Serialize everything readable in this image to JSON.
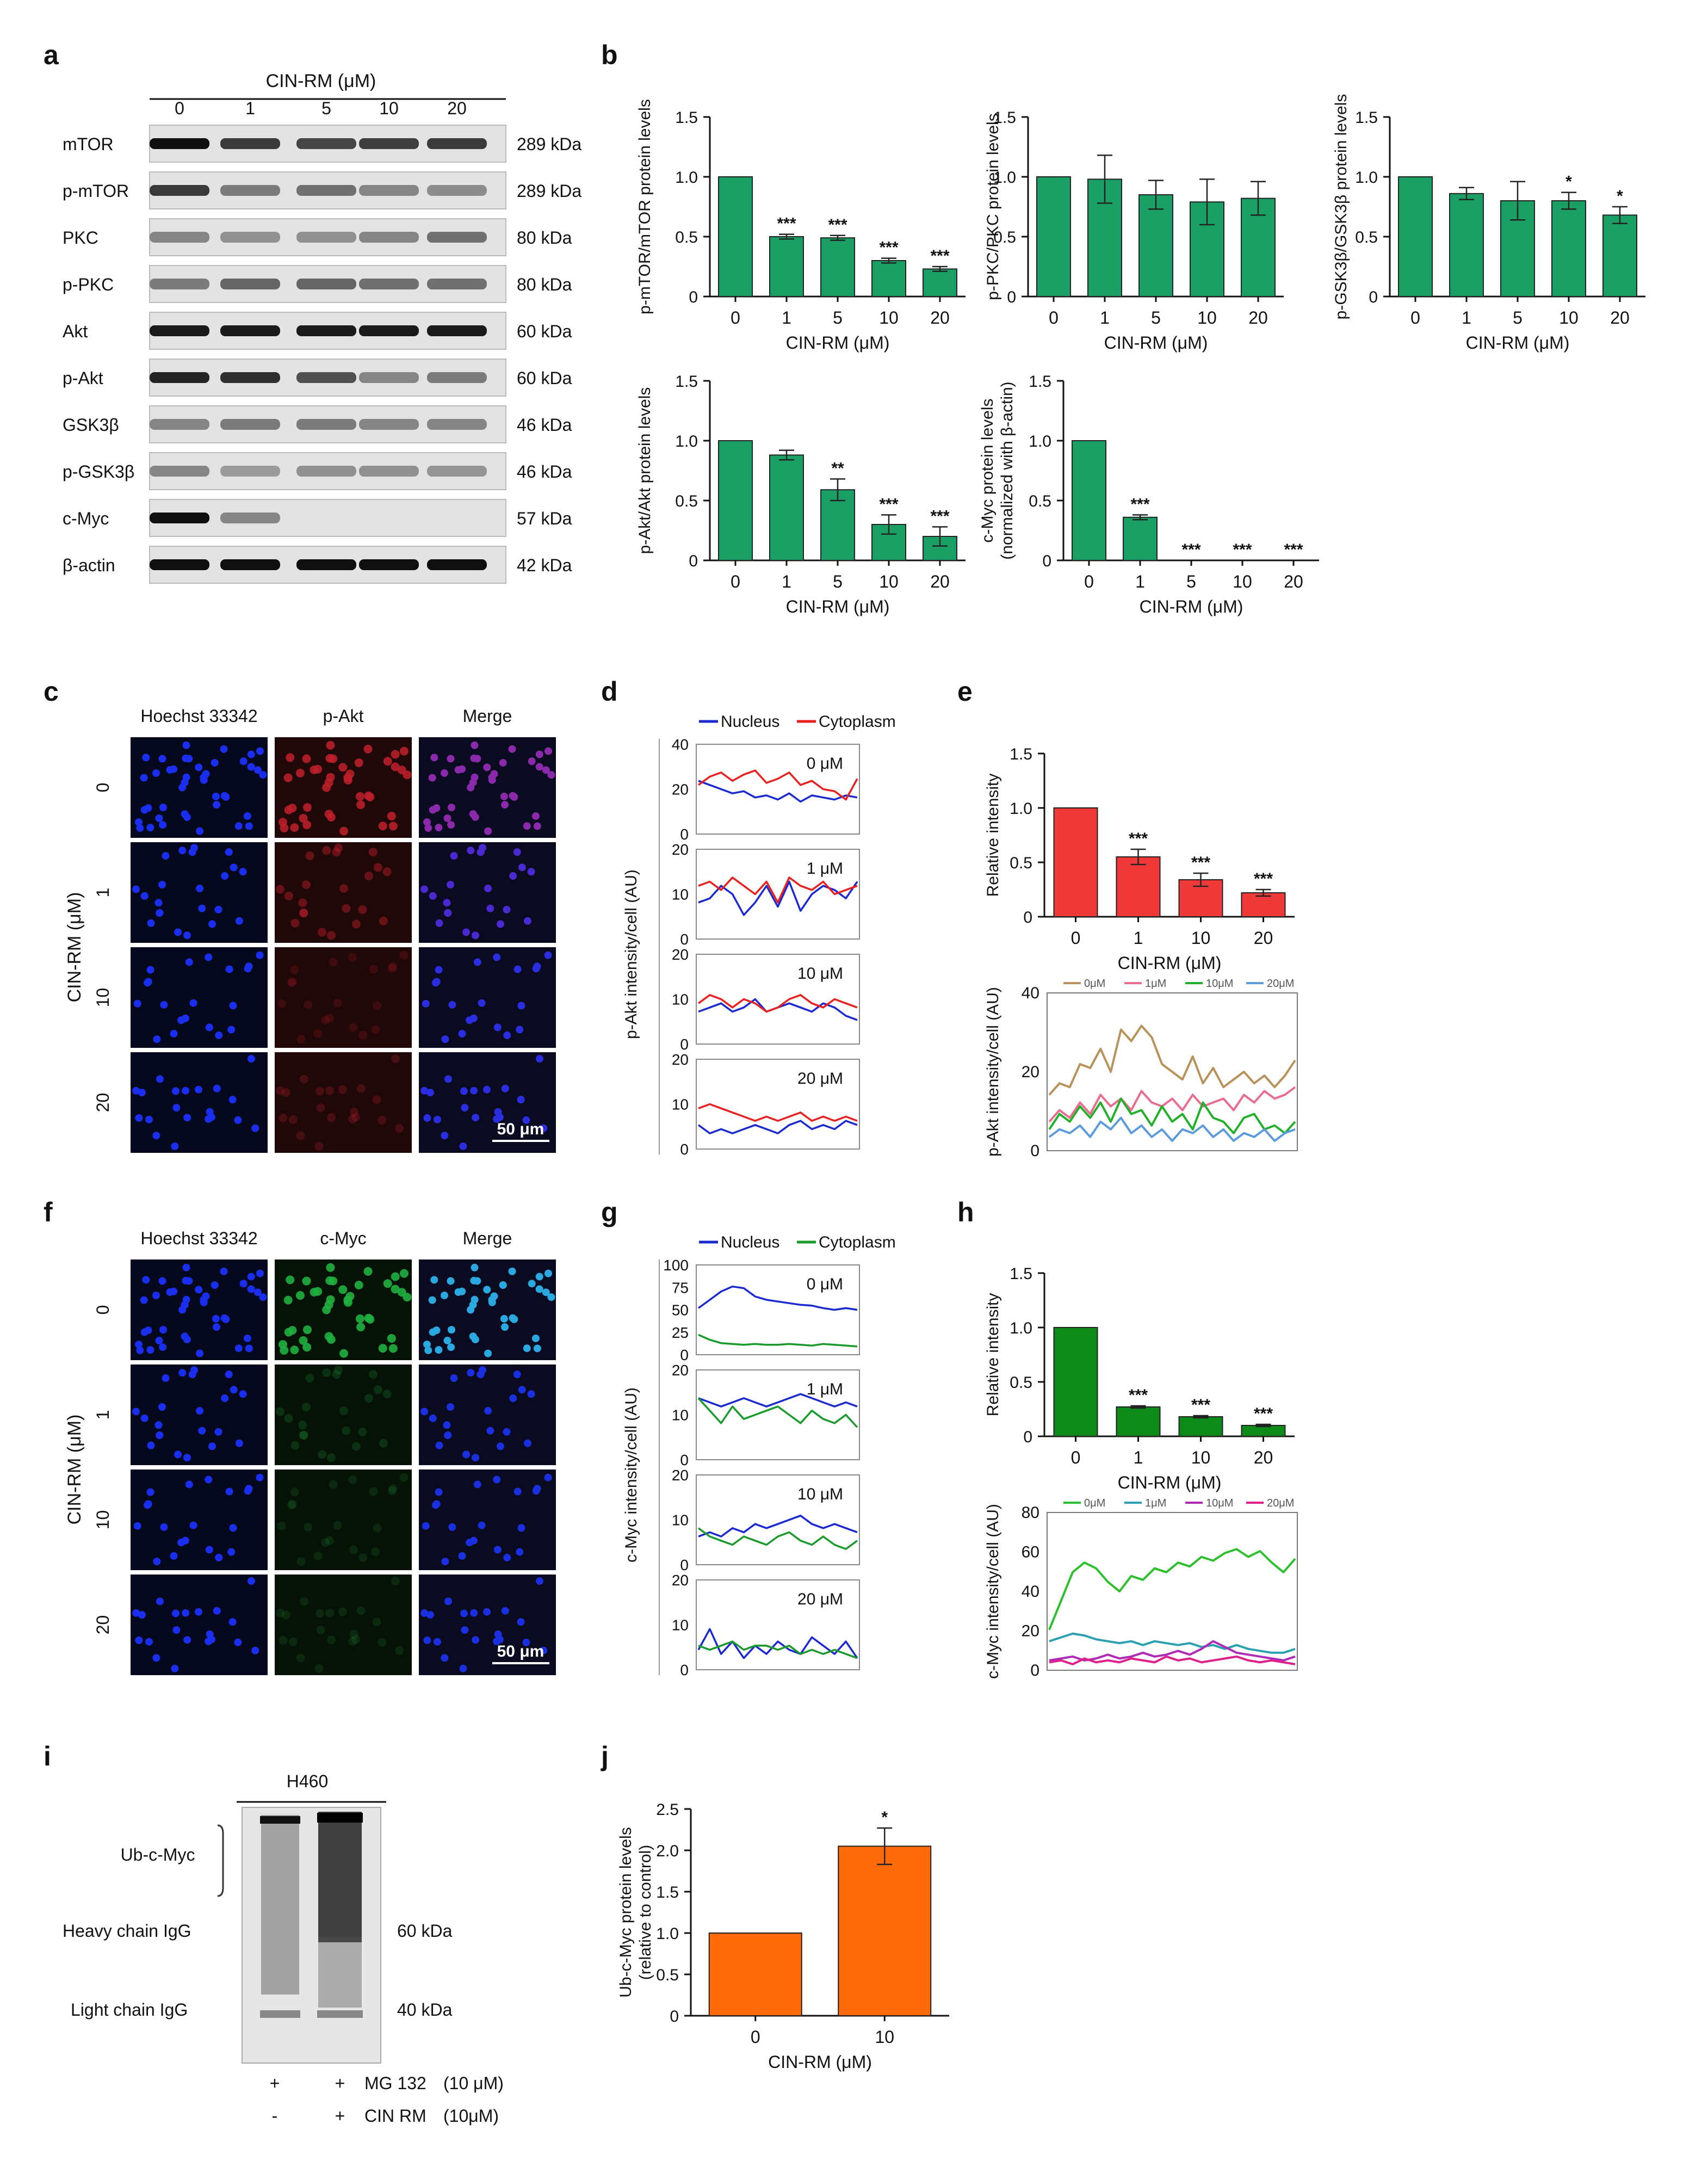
{
  "conc": [
    "0",
    "1",
    "5",
    "10",
    "20"
  ],
  "conc4": [
    "0",
    "1",
    "10",
    "20"
  ],
  "panelA": {
    "letter": "a",
    "header": "CIN-RM (μM)",
    "rows": [
      {
        "label": "mTOR",
        "kda": "289 kDa",
        "band": [
          1.0,
          0.8,
          0.75,
          0.78,
          0.8
        ]
      },
      {
        "label": "p-mTOR",
        "kda": "289 kDa",
        "band": [
          0.8,
          0.5,
          0.55,
          0.45,
          0.42
        ]
      },
      {
        "label": "PKC",
        "kda": "80 kDa",
        "band": [
          0.45,
          0.4,
          0.4,
          0.45,
          0.55
        ]
      },
      {
        "label": "p-PKC",
        "kda": "80 kDa",
        "band": [
          0.5,
          0.6,
          0.6,
          0.55,
          0.55
        ]
      },
      {
        "label": "Akt",
        "kda": "60 kDa",
        "band": [
          0.95,
          0.95,
          0.95,
          0.95,
          0.95
        ]
      },
      {
        "label": "p-Akt",
        "kda": "60 kDa",
        "band": [
          0.9,
          0.85,
          0.7,
          0.45,
          0.5
        ]
      },
      {
        "label": "GSK3β",
        "kda": "46 kDa",
        "band": [
          0.45,
          0.5,
          0.5,
          0.45,
          0.45
        ]
      },
      {
        "label": "p-GSK3β",
        "kda": "46 kDa",
        "band": [
          0.45,
          0.35,
          0.4,
          0.4,
          0.38
        ]
      },
      {
        "label": "c-Myc",
        "kda": "57 kDa",
        "band": [
          1.0,
          0.45,
          0.0,
          0.0,
          0.0
        ]
      },
      {
        "label": "β-actin",
        "kda": "42 kDa",
        "band": [
          1.0,
          1.0,
          1.0,
          1.0,
          1.0
        ]
      }
    ]
  },
  "panelB": {
    "letter": "b",
    "xlabel": "CIN-RM (μM)",
    "charts": [
      {
        "ylabel": "p-mTOR/mTOR protein levels",
        "yticks": [
          "0",
          "0.5",
          "1.0",
          "1.5"
        ],
        "values": [
          1.0,
          0.5,
          0.49,
          0.3,
          0.23
        ],
        "errors": [
          0,
          0.02,
          0.02,
          0.02,
          0.02
        ],
        "stars": [
          "",
          "***",
          "***",
          "***",
          "***"
        ]
      },
      {
        "ylabel": "p-PKC/PKC protein levels",
        "yticks": [
          "0",
          "0.5",
          "1.0",
          "1.5"
        ],
        "values": [
          1.0,
          0.98,
          0.85,
          0.79,
          0.82
        ],
        "errors": [
          0,
          0.2,
          0.12,
          0.19,
          0.14
        ],
        "stars": [
          "",
          "",
          "",
          "",
          ""
        ]
      },
      {
        "ylabel": "p-GSK3β/GSK3β protein levels",
        "yticks": [
          "0",
          "0.5",
          "1.0",
          "1.5"
        ],
        "values": [
          1.0,
          0.86,
          0.8,
          0.8,
          0.68
        ],
        "errors": [
          0,
          0.05,
          0.16,
          0.07,
          0.07
        ],
        "stars": [
          "",
          "",
          "",
          "*",
          "*"
        ]
      },
      {
        "ylabel": "p-Akt/Akt protein levels",
        "yticks": [
          "0",
          "0.5",
          "1.0",
          "1.5"
        ],
        "values": [
          1.0,
          0.88,
          0.59,
          0.3,
          0.2
        ],
        "errors": [
          0,
          0.04,
          0.09,
          0.08,
          0.08
        ],
        "stars": [
          "",
          "",
          "**",
          "***",
          "***"
        ]
      },
      {
        "ylabel": "c-Myc protein levels",
        "ylabel2": "(normalized with β-actin)",
        "yticks": [
          "0",
          "0.5",
          "1.0",
          "1.5"
        ],
        "values": [
          1.0,
          0.36,
          0.0,
          0.0,
          0.0
        ],
        "errors": [
          0,
          0.02,
          0,
          0,
          0
        ],
        "stars": [
          "",
          "***",
          "***",
          "***",
          "***"
        ]
      }
    ]
  },
  "panelC": {
    "letter": "c",
    "cols": [
      "Hoechst 33342",
      "p-Akt",
      "Merge"
    ],
    "ylabel": "CIN-RM (μM)",
    "rows": [
      "0",
      "1",
      "10",
      "20"
    ],
    "scalebar": "50 μm"
  },
  "panelD": {
    "letter": "d",
    "legend": [
      "Nucleus",
      "Cytoplasm"
    ],
    "ylabel": "p-Akt intensity/cell (AU)",
    "subs": [
      {
        "label": "0 μM",
        "yticks": [
          "0",
          "20",
          "40"
        ],
        "ymax": 40,
        "nucleus": [
          24,
          22,
          20,
          18,
          19,
          16,
          17,
          15,
          18,
          14,
          17,
          16,
          15,
          17,
          16
        ],
        "cytoplasm": [
          22,
          26,
          28,
          24,
          27,
          29,
          23,
          25,
          28,
          22,
          24,
          20,
          19,
          15,
          25
        ]
      },
      {
        "label": "1 μM",
        "yticks": [
          "0",
          "10",
          "20"
        ],
        "ymax": 20,
        "nucleus": [
          8,
          9,
          12,
          10,
          5,
          8,
          12,
          7,
          13,
          6,
          10,
          12,
          11,
          9,
          13
        ],
        "cytoplasm": [
          12,
          13,
          11,
          14,
          12,
          10,
          13,
          8,
          14,
          12,
          11,
          13,
          10,
          11,
          12
        ]
      },
      {
        "label": "10 μM",
        "yticks": [
          "0",
          "10",
          "20"
        ],
        "ymax": 20,
        "nucleus": [
          7,
          8,
          9,
          7,
          8,
          10,
          7,
          8,
          9,
          8,
          7,
          9,
          8,
          6,
          5
        ],
        "cytoplasm": [
          9,
          11,
          10,
          8,
          10,
          9,
          7,
          8,
          10,
          11,
          9,
          8,
          10,
          9,
          8
        ]
      },
      {
        "label": "20 μM",
        "yticks": [
          "0",
          "10",
          "20"
        ],
        "ymax": 20,
        "nucleus": [
          5,
          3,
          4,
          3,
          4,
          5,
          4,
          3,
          5,
          6,
          4,
          5,
          4,
          6,
          5
        ],
        "cytoplasm": [
          9,
          10,
          9,
          8,
          7,
          6,
          7,
          6,
          7,
          8,
          6,
          7,
          6,
          7,
          6
        ]
      }
    ]
  },
  "panelE": {
    "letter": "e",
    "bar": {
      "ylabel": "Relative intensity",
      "xlabel": "CIN-RM (μM)",
      "yticks": [
        "0",
        "0.5",
        "1.0",
        "1.5"
      ],
      "values": [
        1.0,
        0.55,
        0.34,
        0.22
      ],
      "errors": [
        0,
        0.07,
        0.06,
        0.03
      ],
      "stars": [
        "",
        "***",
        "***",
        "***"
      ],
      "color": "#f03a3a"
    },
    "line": {
      "ylabel": "p-Akt intensity/cell (AU)",
      "yticks": [
        "0",
        "20",
        "40"
      ],
      "ymax": 40,
      "legend": [
        "0μM",
        "1μM",
        "10μM",
        "20μM"
      ],
      "colors": [
        "#b8925a",
        "#e86d8f",
        "#22b02a",
        "#5b9bdc"
      ],
      "series": [
        [
          14,
          17,
          16,
          22,
          21,
          26,
          20,
          31,
          28,
          32,
          29,
          22,
          20,
          18,
          24,
          17,
          21,
          16,
          18,
          20,
          17,
          19,
          16,
          19,
          23
        ],
        [
          7,
          10,
          8,
          12,
          9,
          14,
          11,
          13,
          10,
          15,
          12,
          11,
          13,
          10,
          14,
          11,
          12,
          13,
          10,
          14,
          12,
          15,
          13,
          14,
          16
        ],
        [
          5,
          9,
          7,
          11,
          8,
          12,
          7,
          13,
          9,
          10,
          6,
          11,
          7,
          9,
          5,
          12,
          8,
          7,
          4,
          8,
          9,
          5,
          6,
          4,
          7
        ],
        [
          3,
          5,
          4,
          6,
          3,
          7,
          5,
          8,
          4,
          6,
          3,
          5,
          2,
          5,
          4,
          6,
          3,
          5,
          2,
          4,
          3,
          5,
          2,
          4,
          5
        ]
      ]
    }
  },
  "panelF": {
    "letter": "f",
    "cols": [
      "Hoechst 33342",
      "c-Myc",
      "Merge"
    ],
    "ylabel": "CIN-RM (μM)",
    "rows": [
      "0",
      "1",
      "10",
      "20"
    ],
    "scalebar": "50 μm"
  },
  "panelG": {
    "letter": "g",
    "legend": [
      "Nucleus",
      "Cytoplasm"
    ],
    "ylabel": "c-Myc intensity/cell (AU)",
    "subs": [
      {
        "label": "0 μM",
        "yticks": [
          "0",
          "25",
          "50",
          "75",
          "100"
        ],
        "ymax": 100,
        "nucleus": [
          52,
          62,
          72,
          78,
          76,
          66,
          62,
          60,
          58,
          56,
          55,
          52,
          50,
          52,
          50
        ],
        "cytoplasm": [
          20,
          14,
          10,
          9,
          8,
          9,
          8,
          8,
          9,
          8,
          7,
          9,
          8,
          7,
          6
        ]
      },
      {
        "label": "1 μM",
        "yticks": [
          "0",
          "10",
          "20"
        ],
        "ymax": 20,
        "nucleus": [
          14,
          13,
          12,
          13,
          14,
          13,
          12,
          13,
          14,
          15,
          14,
          13,
          12,
          13,
          12
        ],
        "cytoplasm": [
          14,
          11,
          8,
          12,
          9,
          10,
          11,
          12,
          10,
          8,
          11,
          9,
          8,
          10,
          7
        ]
      },
      {
        "label": "10 μM",
        "yticks": [
          "0",
          "10",
          "20"
        ],
        "ymax": 20,
        "nucleus": [
          6,
          7,
          6,
          8,
          7,
          9,
          8,
          9,
          10,
          11,
          9,
          8,
          9,
          8,
          7
        ],
        "cytoplasm": [
          8,
          6,
          5,
          4,
          6,
          5,
          4,
          6,
          7,
          5,
          4,
          6,
          4,
          3,
          5
        ]
      },
      {
        "label": "20 μM",
        "yticks": [
          "0",
          "10",
          "20"
        ],
        "ymax": 20,
        "nucleus": [
          4,
          9,
          3,
          6,
          2,
          5,
          3,
          6,
          4,
          3,
          7,
          5,
          3,
          6,
          2
        ],
        "cytoplasm": [
          5,
          4,
          5,
          6,
          4,
          5,
          5,
          4,
          5,
          3,
          4,
          3,
          4,
          3,
          2
        ]
      }
    ]
  },
  "panelH": {
    "letter": "h",
    "bar": {
      "ylabel": "Relative intensity",
      "xlabel": "CIN-RM (μM)",
      "yticks": [
        "0",
        "0.5",
        "1.0",
        "1.5"
      ],
      "values": [
        1.0,
        0.27,
        0.18,
        0.1
      ],
      "errors": [
        0,
        0.01,
        0.01,
        0.01
      ],
      "stars": [
        "",
        "***",
        "***",
        "***"
      ],
      "color": "#0e8a18"
    },
    "line": {
      "ylabel": "c-Myc intensity/cell (AU)",
      "yticks": [
        "0",
        "20",
        "40",
        "60",
        "80"
      ],
      "ymax": 80,
      "legend": [
        "0μM",
        "1μM",
        "10μM",
        "20μM"
      ],
      "colors": [
        "#2dc02d",
        "#2aa0b0",
        "#b02ab8",
        "#e0208a"
      ],
      "series": [
        [
          20,
          35,
          50,
          55,
          52,
          45,
          40,
          48,
          46,
          52,
          50,
          55,
          53,
          58,
          56,
          60,
          62,
          58,
          61,
          55,
          50,
          57
        ],
        [
          14,
          16,
          18,
          17,
          15,
          14,
          13,
          14,
          12,
          14,
          13,
          12,
          13,
          11,
          12,
          10,
          12,
          10,
          9,
          8,
          8,
          10
        ],
        [
          4,
          5,
          6,
          4,
          5,
          7,
          5,
          6,
          8,
          6,
          7,
          9,
          7,
          10,
          14,
          11,
          8,
          7,
          6,
          5,
          4,
          6
        ],
        [
          3,
          4,
          2,
          5,
          3,
          4,
          3,
          5,
          4,
          3,
          6,
          4,
          5,
          3,
          4,
          5,
          6,
          4,
          3,
          4,
          3,
          2
        ]
      ]
    }
  },
  "panelI": {
    "letter": "i",
    "cellline": "H460",
    "labels": [
      "Ub-c-Myc",
      "Heavy chain IgG",
      "Light chain IgG"
    ],
    "kda": [
      "60 kDa",
      "40 kDa"
    ],
    "treatments": [
      {
        "signs": [
          "+",
          "+"
        ],
        "name": "MG 132",
        "dose": "(10 μM)"
      },
      {
        "signs": [
          "-",
          "+"
        ],
        "name": "CIN RM",
        "dose": "(10μM)"
      }
    ]
  },
  "panelJ": {
    "letter": "j",
    "ylabel": "Ub-c-Myc protein levels",
    "ylabel2": "(relative to control)",
    "xlabel": "CIN-RM (μM)",
    "yticks": [
      "0",
      "0.5",
      "1.0",
      "1.5",
      "2.0",
      "2.5"
    ],
    "categories": [
      "0",
      "10"
    ],
    "values": [
      1.0,
      2.05
    ],
    "errors": [
      0,
      0.22
    ],
    "stars": [
      "",
      "*"
    ],
    "color": "#ff6a0a"
  },
  "chart_data": [
    {
      "type": "bar",
      "categories": [
        "0",
        "1",
        "5",
        "10",
        "20"
      ],
      "values": [
        1.0,
        0.5,
        0.49,
        0.3,
        0.23
      ],
      "ylabel": "p-mTOR/mTOR protein levels",
      "xlabel": "CIN-RM (μM)",
      "ylim": [
        0,
        1.5
      ]
    },
    {
      "type": "bar",
      "categories": [
        "0",
        "1",
        "5",
        "10",
        "20"
      ],
      "values": [
        1.0,
        0.98,
        0.85,
        0.79,
        0.82
      ],
      "ylabel": "p-PKC/PKC protein levels",
      "xlabel": "CIN-RM (μM)",
      "ylim": [
        0,
        1.5
      ]
    },
    {
      "type": "bar",
      "categories": [
        "0",
        "1",
        "5",
        "10",
        "20"
      ],
      "values": [
        1.0,
        0.86,
        0.8,
        0.8,
        0.68
      ],
      "ylabel": "p-GSK3β/GSK3β protein levels",
      "xlabel": "CIN-RM (μM)",
      "ylim": [
        0,
        1.5
      ]
    },
    {
      "type": "bar",
      "categories": [
        "0",
        "1",
        "5",
        "10",
        "20"
      ],
      "values": [
        1.0,
        0.88,
        0.59,
        0.3,
        0.2
      ],
      "ylabel": "p-Akt/Akt protein levels",
      "xlabel": "CIN-RM (μM)",
      "ylim": [
        0,
        1.5
      ]
    },
    {
      "type": "bar",
      "categories": [
        "0",
        "1",
        "5",
        "10",
        "20"
      ],
      "values": [
        1.0,
        0.36,
        0.0,
        0.0,
        0.0
      ],
      "ylabel": "c-Myc protein levels (normalized with β-actin)",
      "xlabel": "CIN-RM (μM)",
      "ylim": [
        0,
        1.5
      ]
    },
    {
      "type": "bar",
      "categories": [
        "0",
        "1",
        "10",
        "20"
      ],
      "values": [
        1.0,
        0.55,
        0.34,
        0.22
      ],
      "ylabel": "Relative intensity",
      "xlabel": "CIN-RM (μM)",
      "ylim": [
        0,
        1.5
      ]
    },
    {
      "type": "bar",
      "categories": [
        "0",
        "1",
        "10",
        "20"
      ],
      "values": [
        1.0,
        0.27,
        0.18,
        0.1
      ],
      "ylabel": "Relative intensity",
      "xlabel": "CIN-RM (μM)",
      "ylim": [
        0,
        1.5
      ]
    },
    {
      "type": "bar",
      "categories": [
        "0",
        "10"
      ],
      "values": [
        1.0,
        2.05
      ],
      "ylabel": "Ub-c-Myc protein levels (relative to control)",
      "xlabel": "CIN-RM (μM)",
      "ylim": [
        0,
        2.5
      ]
    }
  ]
}
